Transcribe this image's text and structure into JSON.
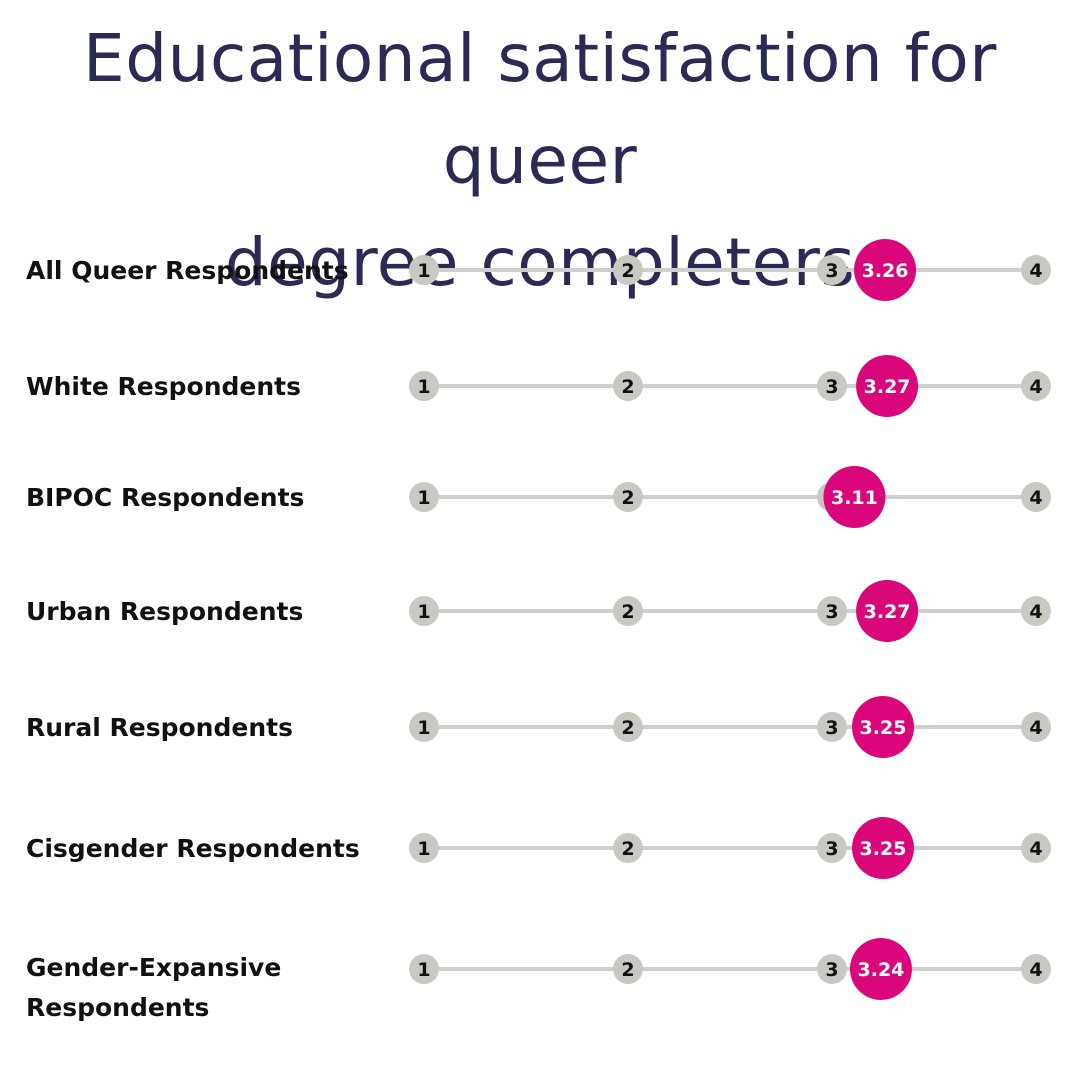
{
  "title_lines": [
    "Educational satisfaction for queer",
    "degree completers"
  ],
  "colors": {
    "title": "#2b2a55",
    "track": "#cfcfcb",
    "tick_dot": "#c9c9c4",
    "value_dot": "#d9077a",
    "label": "#111111"
  },
  "chart_data": {
    "type": "dot-scale",
    "title": "Educational satisfaction for queer degree completers",
    "scale_ticks": [
      1,
      2,
      3,
      4
    ],
    "xlim": [
      1,
      4
    ],
    "rows": [
      {
        "label_lines": [
          "All Queer Respondents"
        ],
        "value": 3.26,
        "value_label": "3.26"
      },
      {
        "label_lines": [
          "White Respondents"
        ],
        "value": 3.27,
        "value_label": "3.27"
      },
      {
        "label_lines": [
          "BIPOC Respondents"
        ],
        "value": 3.11,
        "value_label": "3.11"
      },
      {
        "label_lines": [
          "Urban Respondents"
        ],
        "value": 3.27,
        "value_label": "3.27"
      },
      {
        "label_lines": [
          "Rural Respondents"
        ],
        "value": 3.25,
        "value_label": "3.25"
      },
      {
        "label_lines": [
          "Cisgender Respondents"
        ],
        "value": 3.25,
        "value_label": "3.25"
      },
      {
        "label_lines": [
          "Gender-Expansive",
          " Respondents"
        ],
        "value": 3.24,
        "value_label": "3.24"
      }
    ]
  }
}
